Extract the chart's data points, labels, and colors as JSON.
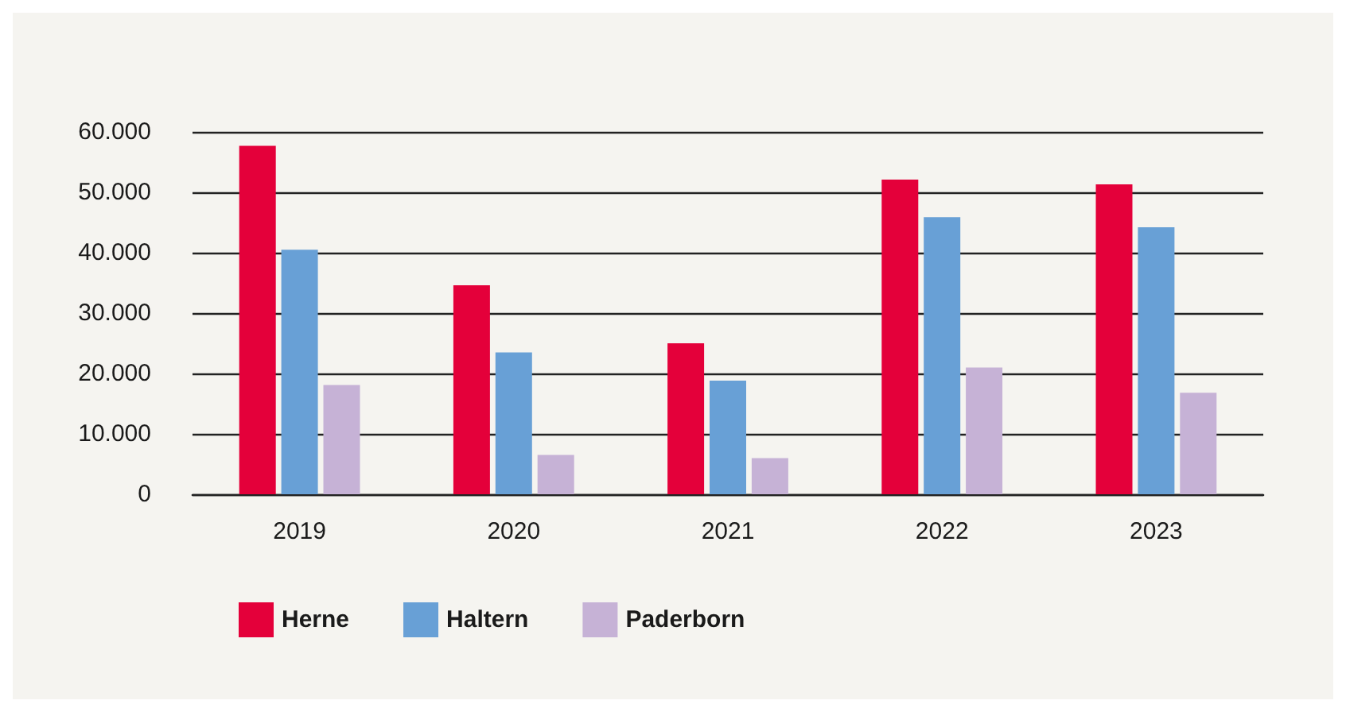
{
  "chart_data": {
    "type": "bar",
    "categories": [
      "2019",
      "2020",
      "2021",
      "2022",
      "2023"
    ],
    "series": [
      {
        "name": "Herne",
        "color": "#e4003a",
        "values": [
          57700,
          34600,
          25000,
          52100,
          51300
        ]
      },
      {
        "name": "Haltern",
        "color": "#68a0d6",
        "values": [
          40500,
          23500,
          18800,
          45900,
          44200
        ]
      },
      {
        "name": "Paderborn",
        "color": "#c6b2d6",
        "values": [
          18100,
          6500,
          6000,
          21000,
          16800
        ]
      }
    ],
    "ylim": [
      0,
      60000
    ],
    "yticks": [
      {
        "value": 0,
        "label": "0"
      },
      {
        "value": 10000,
        "label": "10.000"
      },
      {
        "value": 20000,
        "label": "20.000"
      },
      {
        "value": 30000,
        "label": "30.000"
      },
      {
        "value": 40000,
        "label": "40.000"
      },
      {
        "value": 50000,
        "label": "50.000"
      },
      {
        "value": 60000,
        "label": "60.000"
      }
    ],
    "grid": "y",
    "legend": "bottom left"
  }
}
